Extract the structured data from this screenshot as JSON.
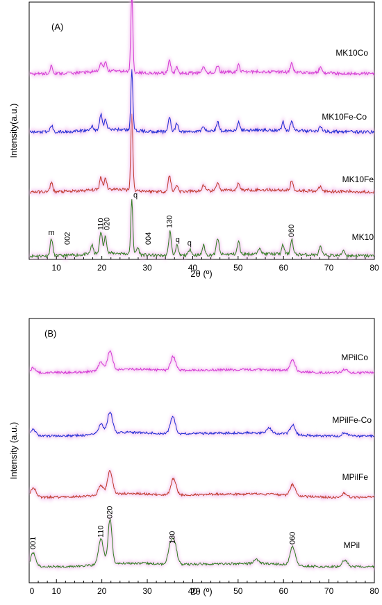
{
  "chart_data": [
    {
      "type": "line",
      "panel_label": "(A)",
      "xlabel": "2θ (º)",
      "ylabel": "Intensity(a.u.)",
      "xlim": [
        4,
        80
      ],
      "x_ticks": [
        10,
        20,
        30,
        40,
        50,
        60,
        70,
        80
      ],
      "series": [
        {
          "name": "MK10",
          "color": "#2e7d1e",
          "baseline": 0,
          "peaks": [
            [
              8.9,
              25
            ],
            [
              17.8,
              13
            ],
            [
              19.8,
              32
            ],
            [
              20.8,
              24
            ],
            [
              26.6,
              78
            ],
            [
              27.9,
              10
            ],
            [
              35.0,
              35
            ],
            [
              36.5,
              15
            ],
            [
              39.4,
              10
            ],
            [
              42.4,
              14
            ],
            [
              45.5,
              24
            ],
            [
              50.1,
              18
            ],
            [
              54.8,
              10
            ],
            [
              59.9,
              13
            ],
            [
              61.8,
              22
            ],
            [
              68.1,
              12
            ],
            [
              73.2,
              8
            ]
          ]
        },
        {
          "name": "MK10Fe",
          "color": "#c0392b",
          "baseline": 92,
          "peaks": [
            [
              8.9,
              14
            ],
            [
              19.8,
              18
            ],
            [
              20.8,
              16
            ],
            [
              26.6,
              110
            ],
            [
              34.9,
              24
            ],
            [
              36.5,
              10
            ],
            [
              42.4,
              9
            ],
            [
              45.5,
              13
            ],
            [
              50.1,
              11
            ],
            [
              61.8,
              14
            ],
            [
              68.1,
              7
            ]
          ]
        },
        {
          "name": "MK10Fe-Co",
          "color": "#1e2ad4",
          "baseline": 178,
          "peaks": [
            [
              8.9,
              10
            ],
            [
              17.8,
              6
            ],
            [
              19.8,
              22
            ],
            [
              20.8,
              14
            ],
            [
              26.6,
              86
            ],
            [
              34.9,
              22
            ],
            [
              36.5,
              12
            ],
            [
              42.4,
              8
            ],
            [
              45.5,
              13
            ],
            [
              50.1,
              11
            ],
            [
              59.9,
              12
            ],
            [
              61.8,
              14
            ],
            [
              68.1,
              8
            ]
          ]
        },
        {
          "name": "MK10Co",
          "color": "#d43ad4",
          "baseline": 262,
          "peaks": [
            [
              8.9,
              12
            ],
            [
              19.8,
              14
            ],
            [
              20.8,
              12
            ],
            [
              26.6,
              112
            ],
            [
              34.9,
              18
            ],
            [
              36.5,
              10
            ],
            [
              42.4,
              8
            ],
            [
              45.5,
              10
            ],
            [
              50.1,
              10
            ],
            [
              61.8,
              12
            ],
            [
              68.1,
              8
            ]
          ]
        }
      ],
      "peak_labels": [
        {
          "text": "m",
          "x": 8.9,
          "height": 26
        },
        {
          "text": "002",
          "x": 12.5,
          "height": 12
        },
        {
          "text": "110",
          "x": 19.8,
          "height": 33
        },
        {
          "text": "020",
          "x": 21.2,
          "height": 33
        },
        {
          "text": "q",
          "x": 27.4,
          "height": 80
        },
        {
          "text": "004",
          "x": 30.3,
          "height": 12
        },
        {
          "text": "130",
          "x": 35.0,
          "height": 36
        },
        {
          "text": "q",
          "x": 36.7,
          "height": 16
        },
        {
          "text": "q",
          "x": 39.3,
          "height": 11
        },
        {
          "text": "060",
          "x": 61.8,
          "height": 23
        }
      ]
    },
    {
      "type": "line",
      "panel_label": "(B)",
      "xlabel": "2θ (º)",
      "ylabel": "Intensity (a.u.)",
      "xlim": [
        4,
        80
      ],
      "x_ticks": [
        0,
        10,
        20,
        30,
        40,
        50,
        60,
        70,
        80
      ],
      "series": [
        {
          "name": "MPil",
          "color": "#2e7d1e",
          "baseline": 0,
          "peaks": [
            [
              4.9,
              20
            ],
            [
              19.8,
              37
            ],
            [
              21.8,
              64
            ],
            [
              35.1,
              25
            ],
            [
              36.0,
              28
            ],
            [
              54.0,
              6
            ],
            [
              62.0,
              27
            ],
            [
              73.5,
              10
            ]
          ]
        },
        {
          "name": "MPilFe",
          "color": "#c0392b",
          "baseline": 100,
          "peaks": [
            [
              4.9,
              14
            ],
            [
              19.8,
              14
            ],
            [
              21.8,
              34
            ],
            [
              35.8,
              24
            ],
            [
              62.0,
              16
            ],
            [
              73.5,
              6
            ]
          ]
        },
        {
          "name": "MPilFe-Co",
          "color": "#1e2ad4",
          "baseline": 188,
          "peaks": [
            [
              4.9,
              9
            ],
            [
              19.8,
              14
            ],
            [
              21.8,
              31
            ],
            [
              35.6,
              24
            ],
            [
              56.8,
              7
            ],
            [
              62.0,
              14
            ],
            [
              73.5,
              5
            ]
          ]
        },
        {
          "name": "MPilCo",
          "color": "#d43ad4",
          "baseline": 279,
          "peaks": [
            [
              4.9,
              7
            ],
            [
              19.8,
              12
            ],
            [
              21.8,
              28
            ],
            [
              35.7,
              20
            ],
            [
              62.0,
              16
            ],
            [
              73.5,
              5
            ]
          ]
        }
      ],
      "peak_labels": [
        {
          "text": "001",
          "x": 4.9,
          "height": 21
        },
        {
          "text": "110",
          "x": 19.8,
          "height": 38
        },
        {
          "text": "020",
          "x": 21.8,
          "height": 65
        },
        {
          "text": "130",
          "x": 35.6,
          "height": 29
        },
        {
          "text": "060",
          "x": 62.0,
          "height": 28
        }
      ]
    }
  ]
}
